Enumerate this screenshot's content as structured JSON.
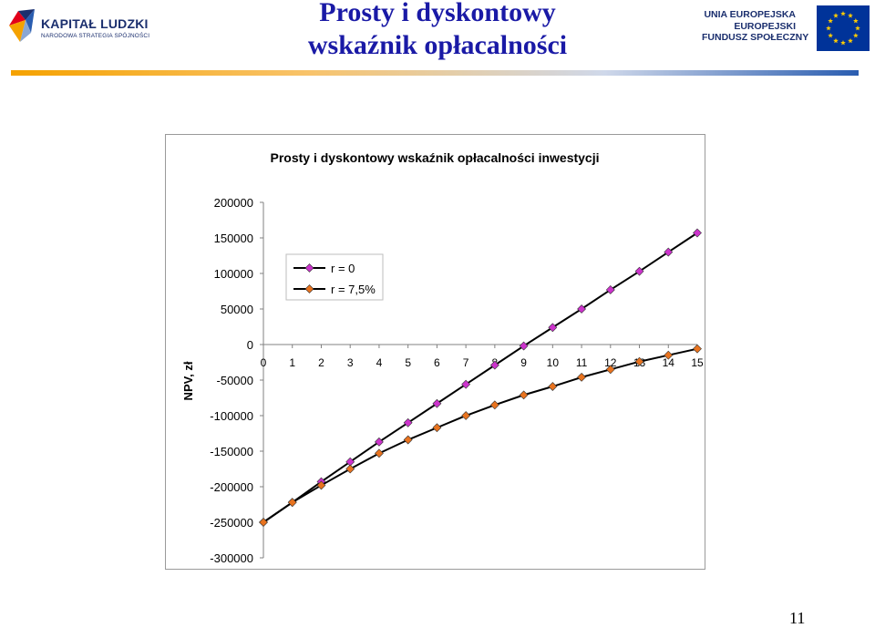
{
  "header": {
    "left_logo": {
      "name": "KAPITAŁ LUDZKI",
      "subtitle": "NARODOWA STRATEGIA SPÓJNOŚCI"
    },
    "title_lines": [
      "Prosty i dyskontowy",
      "wskaźnik opłacalności"
    ],
    "right_logo": {
      "lines": [
        "UNIA EUROPEJSKA",
        "EUROPEJSKI",
        "FUNDUSZ SPOŁECZNY"
      ]
    }
  },
  "colors": {
    "title": "#1a1aa6",
    "brand_blue": "#1b2f6e",
    "eu_blue": "#003399",
    "eu_star": "#ffcc00",
    "header_line": "#f5a200",
    "series_r0": "#cc33cc",
    "series_r75": "#e8731f"
  },
  "chart_data": {
    "type": "line",
    "title": "Prosty i dyskontowy wskaźnik opłacalności inwestycji",
    "xlabel": "",
    "ylabel": "NPV, zł",
    "x": [
      0,
      1,
      2,
      3,
      4,
      5,
      6,
      7,
      8,
      9,
      10,
      11,
      12,
      13,
      14,
      15
    ],
    "x_tick_labels": [
      "0",
      "1",
      "2",
      "3",
      "4",
      "5",
      "6",
      "7",
      "8",
      "9",
      "10",
      "11",
      "12",
      "13",
      "14",
      "15"
    ],
    "y_tick_labels": [
      "200000",
      "150000",
      "100000",
      "50000",
      "0",
      "-50000",
      "-100000",
      "-150000",
      "-200000",
      "-250000",
      "-300000"
    ],
    "ylim": [
      -300000,
      200000
    ],
    "grid": false,
    "legend_position": "top-left",
    "series": [
      {
        "name": "r = 0",
        "marker": "diamond",
        "color": "#cc33cc",
        "values": [
          -250000,
          -222000,
          -193000,
          -165000,
          -137000,
          -110000,
          -83000,
          -56000,
          -29000,
          -2000,
          24000,
          50000,
          77000,
          103000,
          130000,
          157000
        ]
      },
      {
        "name": "r = 7,5%",
        "marker": "diamond",
        "color": "#e8731f",
        "values": [
          -250000,
          -222000,
          -198000,
          -175000,
          -153000,
          -134000,
          -117000,
          -100000,
          -85000,
          -71000,
          -59000,
          -46000,
          -35000,
          -24000,
          -15000,
          -6000
        ]
      }
    ]
  },
  "footer": {
    "page_number": "11"
  }
}
